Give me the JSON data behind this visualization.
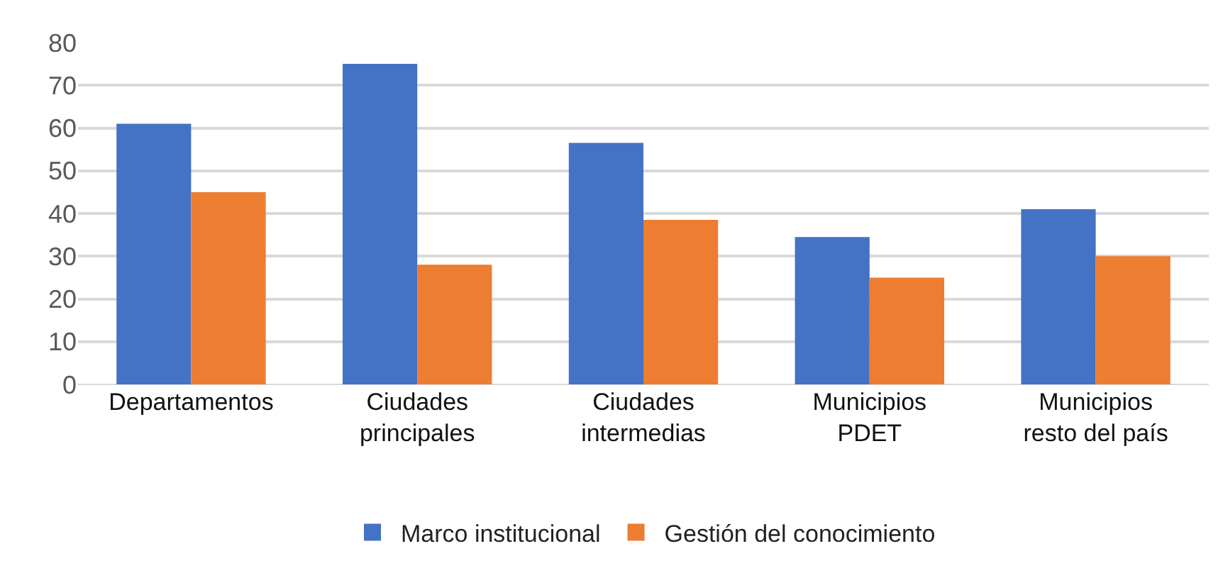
{
  "chart_data": {
    "type": "bar",
    "categories": [
      "Departamentos",
      "Ciudades\nprincipales",
      "Ciudades\nintermedias",
      "Municipios\nPDET",
      "Municipios\nresto del país"
    ],
    "series": [
      {
        "name": "Marco institucional",
        "color": "#4472c4",
        "values": [
          61,
          75,
          56.5,
          34.5,
          41
        ]
      },
      {
        "name": "Gestión del conocimiento",
        "color": "#ed7d31",
        "values": [
          45,
          28,
          38.5,
          25,
          30
        ]
      }
    ],
    "ylim": [
      0,
      80
    ],
    "yticks": [
      0,
      10,
      20,
      30,
      40,
      50,
      60,
      70,
      80
    ],
    "grid": true,
    "legend": "bottom"
  }
}
